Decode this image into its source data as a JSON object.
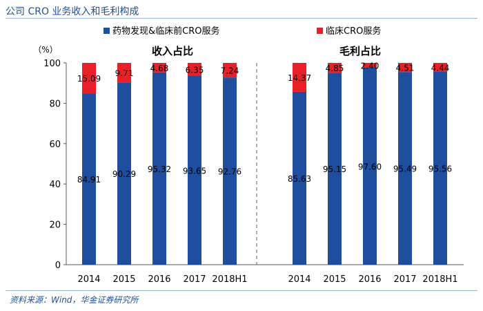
{
  "header": {
    "title": "公司 CRO 业务收入和毛利构成"
  },
  "footer": {
    "source": "资料来源：Wind，华金证券研究所"
  },
  "chart_data": {
    "type": "bar",
    "stacked": true,
    "unit_label": "（%）",
    "ylim": [
      0,
      100
    ],
    "yticks": [
      0,
      20,
      40,
      60,
      80,
      100
    ],
    "legend": {
      "placement": "top",
      "entries": [
        {
          "name": "药物发现&临床前CRO服务",
          "color": "#1f4e9e"
        },
        {
          "name": "临床CRO服务",
          "color": "#e8202a"
        }
      ]
    },
    "panels": [
      {
        "title": "收入占比",
        "categories": [
          "2014",
          "2015",
          "2016",
          "2017",
          "2018H1"
        ],
        "series": [
          {
            "name": "药物发现&临床前CRO服务",
            "color": "#1f4e9e",
            "values": [
              84.91,
              90.29,
              95.32,
              93.65,
              92.76
            ],
            "labels": [
              "84.91",
              "90.29",
              "95.32",
              "93.65",
              "92.76"
            ]
          },
          {
            "name": "临床CRO服务",
            "color": "#e8202a",
            "values": [
              15.09,
              9.71,
              4.68,
              6.35,
              7.24
            ],
            "labels": [
              "15.09",
              "9.71",
              "4.68",
              "6.35",
              "7.24"
            ]
          }
        ]
      },
      {
        "title": "毛利占比",
        "categories": [
          "2014",
          "2015",
          "2016",
          "2017",
          "2018H1"
        ],
        "series": [
          {
            "name": "药物发现&临床前CRO服务",
            "color": "#1f4e9e",
            "values": [
              85.63,
              95.15,
              97.6,
              95.49,
              95.56
            ],
            "labels": [
              "85.63",
              "95.15",
              "97.60",
              "95.49",
              "95.56"
            ]
          },
          {
            "name": "临床CRO服务",
            "color": "#e8202a",
            "values": [
              14.37,
              4.85,
              2.4,
              4.51,
              4.44
            ],
            "labels": [
              "14.37",
              "4.85",
              "2.40",
              "4.51",
              "4.44"
            ]
          }
        ]
      }
    ]
  }
}
